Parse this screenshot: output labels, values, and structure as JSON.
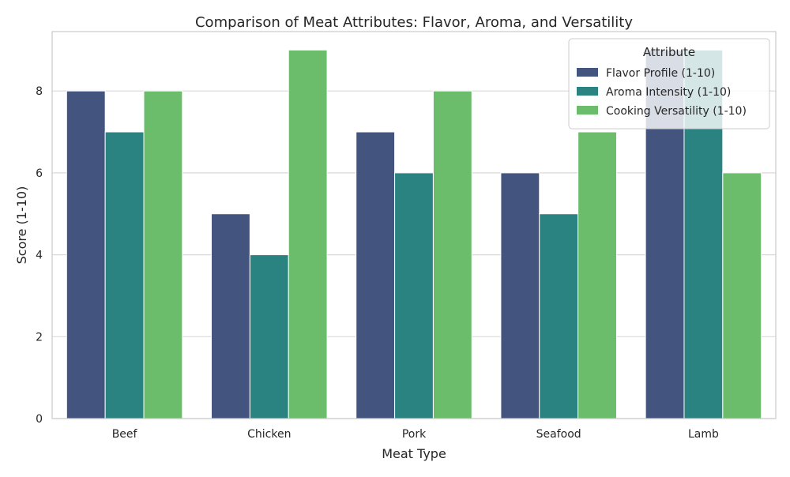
{
  "chart_data": {
    "type": "bar",
    "title": "Comparison of Meat Attributes: Flavor, Aroma, and Versatility",
    "xlabel": "Meat Type",
    "ylabel": "Score (1-10)",
    "ylim": [
      0,
      9.45
    ],
    "yticks": [
      0,
      2,
      4,
      6,
      8
    ],
    "grid": "horizontal",
    "legend_position": "top-right",
    "legend_title": "Attribute",
    "categories": [
      "Beef",
      "Chicken",
      "Pork",
      "Seafood",
      "Lamb"
    ],
    "series": [
      {
        "name": "Flavor Profile (1-10)",
        "color": "#43557f",
        "values": [
          8,
          5,
          7,
          6,
          9
        ]
      },
      {
        "name": "Aroma Intensity (1-10)",
        "color": "#2a8380",
        "values": [
          7,
          4,
          6,
          5,
          9
        ]
      },
      {
        "name": "Cooking Versatility (1-10)",
        "color": "#6bbd6b",
        "values": [
          8,
          9,
          8,
          7,
          6
        ]
      }
    ]
  }
}
